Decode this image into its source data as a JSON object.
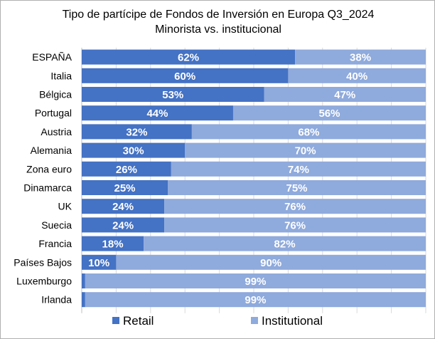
{
  "chart_data": {
    "type": "bar",
    "orientation": "horizontal",
    "stacked": true,
    "title": "Tipo de partícipe de Fondos de Inversión en Europa Q3_2024",
    "subtitle": "Minorista vs. institucional",
    "categories": [
      "ESPAÑA",
      "Italia",
      "Bélgica",
      "Portugal",
      "Austria",
      "Alemania",
      "Zona euro",
      "Dinamarca",
      "UK",
      "Suecia",
      "Francia",
      "Países Bajos",
      "Luxemburgo",
      "Irlanda"
    ],
    "series": [
      {
        "name": "Retail",
        "color": "#4472c4",
        "values": [
          62,
          60,
          53,
          44,
          32,
          30,
          26,
          25,
          24,
          24,
          18,
          10,
          1,
          1
        ],
        "labels": [
          "62%",
          "60%",
          "53%",
          "44%",
          "32%",
          "30%",
          "26%",
          "25%",
          "24%",
          "24%",
          "18%",
          "10%",
          "",
          ""
        ]
      },
      {
        "name": "Institutional",
        "color": "#8faadc",
        "values": [
          38,
          40,
          47,
          56,
          68,
          70,
          74,
          75,
          76,
          76,
          82,
          90,
          99,
          99
        ],
        "labels": [
          "38%",
          "40%",
          "47%",
          "56%",
          "68%",
          "70%",
          "74%",
          "75%",
          "76%",
          "76%",
          "82%",
          "90%",
          "99%",
          "99%"
        ]
      }
    ],
    "xlim": [
      0,
      100
    ],
    "grid": true,
    "legend_position": "bottom"
  }
}
